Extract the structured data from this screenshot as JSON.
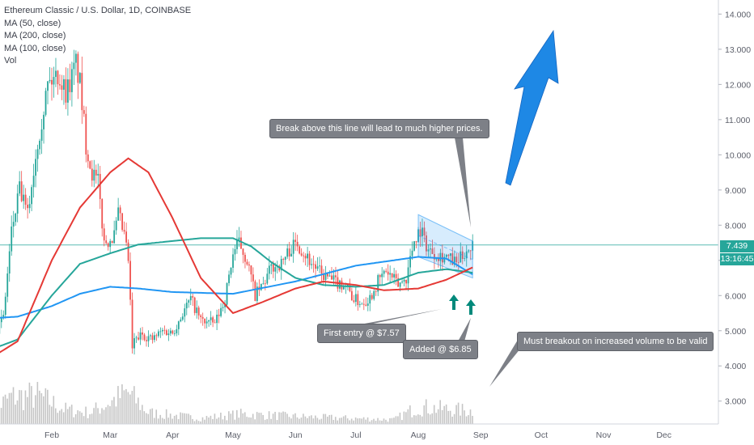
{
  "chart_data": {
    "type": "candlestick",
    "title": "Ethereum Classic / U.S. Dollar, 1D, COINBASE",
    "indicators": [
      {
        "name": "MA (50, close)",
        "color": "#26a69a"
      },
      {
        "name": "MA (200, close)",
        "color": "#2196f3"
      },
      {
        "name": "MA (100, close)",
        "color": "#e53935"
      },
      {
        "name": "Vol",
        "color": "#9e9e9e"
      }
    ],
    "x_ticks": [
      "Feb",
      "Mar",
      "Apr",
      "May",
      "Jun",
      "Jul",
      "Aug",
      "Sep",
      "Oct",
      "Nov",
      "Dec"
    ],
    "y_ticks": [
      "3.000",
      "4.000",
      "5.000",
      "6.000",
      "7.000",
      "8.000",
      "9.000",
      "10.000",
      "11.000",
      "12.000",
      "13.000",
      "14.000"
    ],
    "ylim": [
      2.35,
      14.4
    ],
    "y_scale": "linear",
    "grid": false,
    "last_price": "7.439",
    "countdown": "13:16:45",
    "colors": {
      "up": "#26a69a",
      "down": "#ef5350",
      "volume": "#9e9e9e",
      "price_line": "#26a69a",
      "channel": "#2196f3",
      "arrow": "#1e88e5"
    },
    "close_path": [
      [
        "2020-01-01",
        4.55
      ],
      [
        "2020-01-08",
        5.4
      ],
      [
        "2020-01-12",
        7.8
      ],
      [
        "2020-01-16",
        9.0
      ],
      [
        "2020-01-20",
        8.3
      ],
      [
        "2020-01-25",
        10.4
      ],
      [
        "2020-01-30",
        12.0
      ],
      [
        "2020-02-04",
        12.3
      ],
      [
        "2020-02-08",
        11.8
      ],
      [
        "2020-02-11",
        12.2
      ],
      [
        "2020-02-13",
        12.6
      ],
      [
        "2020-02-15",
        12.0
      ],
      [
        "2020-02-18",
        10.3
      ],
      [
        "2020-02-21",
        9.5
      ],
      [
        "2020-02-24",
        9.2
      ],
      [
        "2020-02-27",
        7.5
      ],
      [
        "2020-03-03",
        7.7
      ],
      [
        "2020-03-05",
        8.3
      ],
      [
        "2020-03-08",
        7.7
      ],
      [
        "2020-03-10",
        7.0
      ],
      [
        "2020-03-12",
        4.5
      ],
      [
        "2020-03-13",
        4.7
      ],
      [
        "2020-03-17",
        4.9
      ],
      [
        "2020-03-22",
        4.75
      ],
      [
        "2020-03-27",
        5.0
      ],
      [
        "2020-04-01",
        4.95
      ],
      [
        "2020-04-06",
        5.5
      ],
      [
        "2020-04-10",
        5.9
      ],
      [
        "2020-04-15",
        5.3
      ],
      [
        "2020-04-22",
        5.2
      ],
      [
        "2020-04-27",
        5.9
      ],
      [
        "2020-05-01",
        7.2
      ],
      [
        "2020-05-04",
        7.5
      ],
      [
        "2020-05-08",
        7.0
      ],
      [
        "2020-05-12",
        6.0
      ],
      [
        "2020-05-16",
        6.3
      ],
      [
        "2020-05-20",
        6.8
      ],
      [
        "2020-05-25",
        6.9
      ],
      [
        "2020-05-29",
        7.3
      ],
      [
        "2020-06-02",
        7.5
      ],
      [
        "2020-06-08",
        7.0
      ],
      [
        "2020-06-14",
        6.6
      ],
      [
        "2020-06-20",
        6.4
      ],
      [
        "2020-06-26",
        6.3
      ],
      [
        "2020-06-30",
        5.9
      ],
      [
        "2020-07-04",
        5.8
      ],
      [
        "2020-07-08",
        5.95
      ],
      [
        "2020-07-12",
        6.4
      ],
      [
        "2020-07-16",
        6.7
      ],
      [
        "2020-07-22",
        6.3
      ],
      [
        "2020-07-26",
        6.5
      ],
      [
        "2020-07-30",
        7.6
      ],
      [
        "2020-08-02",
        7.9
      ],
      [
        "2020-08-06",
        7.3
      ],
      [
        "2020-08-10",
        7.2
      ],
      [
        "2020-08-15",
        7.1
      ],
      [
        "2020-08-20",
        6.9
      ],
      [
        "2020-08-25",
        7.3
      ],
      [
        "2020-08-28",
        7.44
      ]
    ],
    "ma_50": [
      [
        "2020-01-01",
        4.45
      ],
      [
        "2020-01-15",
        4.75
      ],
      [
        "2020-02-01",
        6.0
      ],
      [
        "2020-02-15",
        6.9
      ],
      [
        "2020-03-01",
        7.2
      ],
      [
        "2020-03-15",
        7.45
      ],
      [
        "2020-04-01",
        7.55
      ],
      [
        "2020-04-15",
        7.63
      ],
      [
        "2020-05-01",
        7.63
      ],
      [
        "2020-05-10",
        7.4
      ],
      [
        "2020-05-20",
        6.95
      ],
      [
        "2020-06-01",
        6.5
      ],
      [
        "2020-06-15",
        6.3
      ],
      [
        "2020-07-01",
        6.25
      ],
      [
        "2020-07-15",
        6.3
      ],
      [
        "2020-08-01",
        6.65
      ],
      [
        "2020-08-15",
        6.75
      ],
      [
        "2020-08-28",
        6.65
      ]
    ],
    "ma_200": [
      [
        "2020-01-01",
        5.35
      ],
      [
        "2020-01-15",
        5.4
      ],
      [
        "2020-02-01",
        5.7
      ],
      [
        "2020-02-15",
        6.05
      ],
      [
        "2020-03-01",
        6.25
      ],
      [
        "2020-03-15",
        6.2
      ],
      [
        "2020-04-01",
        6.1
      ],
      [
        "2020-05-01",
        6.05
      ],
      [
        "2020-06-01",
        6.4
      ],
      [
        "2020-07-01",
        6.85
      ],
      [
        "2020-08-01",
        7.1
      ],
      [
        "2020-08-15",
        7.05
      ],
      [
        "2020-08-28",
        6.6
      ]
    ],
    "ma_100": [
      [
        "2020-01-01",
        4.2
      ],
      [
        "2020-01-15",
        4.7
      ],
      [
        "2020-02-01",
        7.0
      ],
      [
        "2020-02-15",
        8.5
      ],
      [
        "2020-03-01",
        9.5
      ],
      [
        "2020-03-10",
        9.9
      ],
      [
        "2020-03-20",
        9.5
      ],
      [
        "2020-04-01",
        8.2
      ],
      [
        "2020-04-15",
        6.5
      ],
      [
        "2020-05-01",
        5.5
      ],
      [
        "2020-05-15",
        5.8
      ],
      [
        "2020-06-01",
        6.2
      ],
      [
        "2020-06-15",
        6.4
      ],
      [
        "2020-07-01",
        6.3
      ],
      [
        "2020-07-15",
        6.15
      ],
      [
        "2020-08-01",
        6.2
      ],
      [
        "2020-08-15",
        6.45
      ],
      [
        "2020-08-28",
        6.8
      ]
    ],
    "channel": {
      "upper": [
        [
          "2020-08-01",
          8.3
        ],
        [
          "2020-08-28",
          7.55
        ]
      ],
      "lower": [
        [
          "2020-08-01",
          7.1
        ],
        [
          "2020-08-28",
          6.5
        ]
      ]
    },
    "volume_peaks": [
      [
        "2020-01-01",
        0.8
      ],
      [
        "2020-01-12",
        1.9
      ],
      [
        "2020-01-25",
        2.0
      ],
      [
        "2020-02-08",
        1.0
      ],
      [
        "2020-02-20",
        0.8
      ],
      [
        "2020-03-10",
        2.2
      ],
      [
        "2020-03-20",
        0.8
      ],
      [
        "2020-04-15",
        0.4
      ],
      [
        "2020-05-05",
        0.7
      ],
      [
        "2020-06-05",
        0.5
      ],
      [
        "2020-07-20",
        0.3
      ],
      [
        "2020-08-01",
        1.2
      ],
      [
        "2020-08-28",
        0.9
      ]
    ],
    "annotations": [
      {
        "text": "Break above this line will lead to much higher prices."
      },
      {
        "text": "First entry @ $7.57"
      },
      {
        "text": "Added @ $6.85"
      },
      {
        "text": "Must breakout on increased volume to be valid"
      }
    ]
  }
}
